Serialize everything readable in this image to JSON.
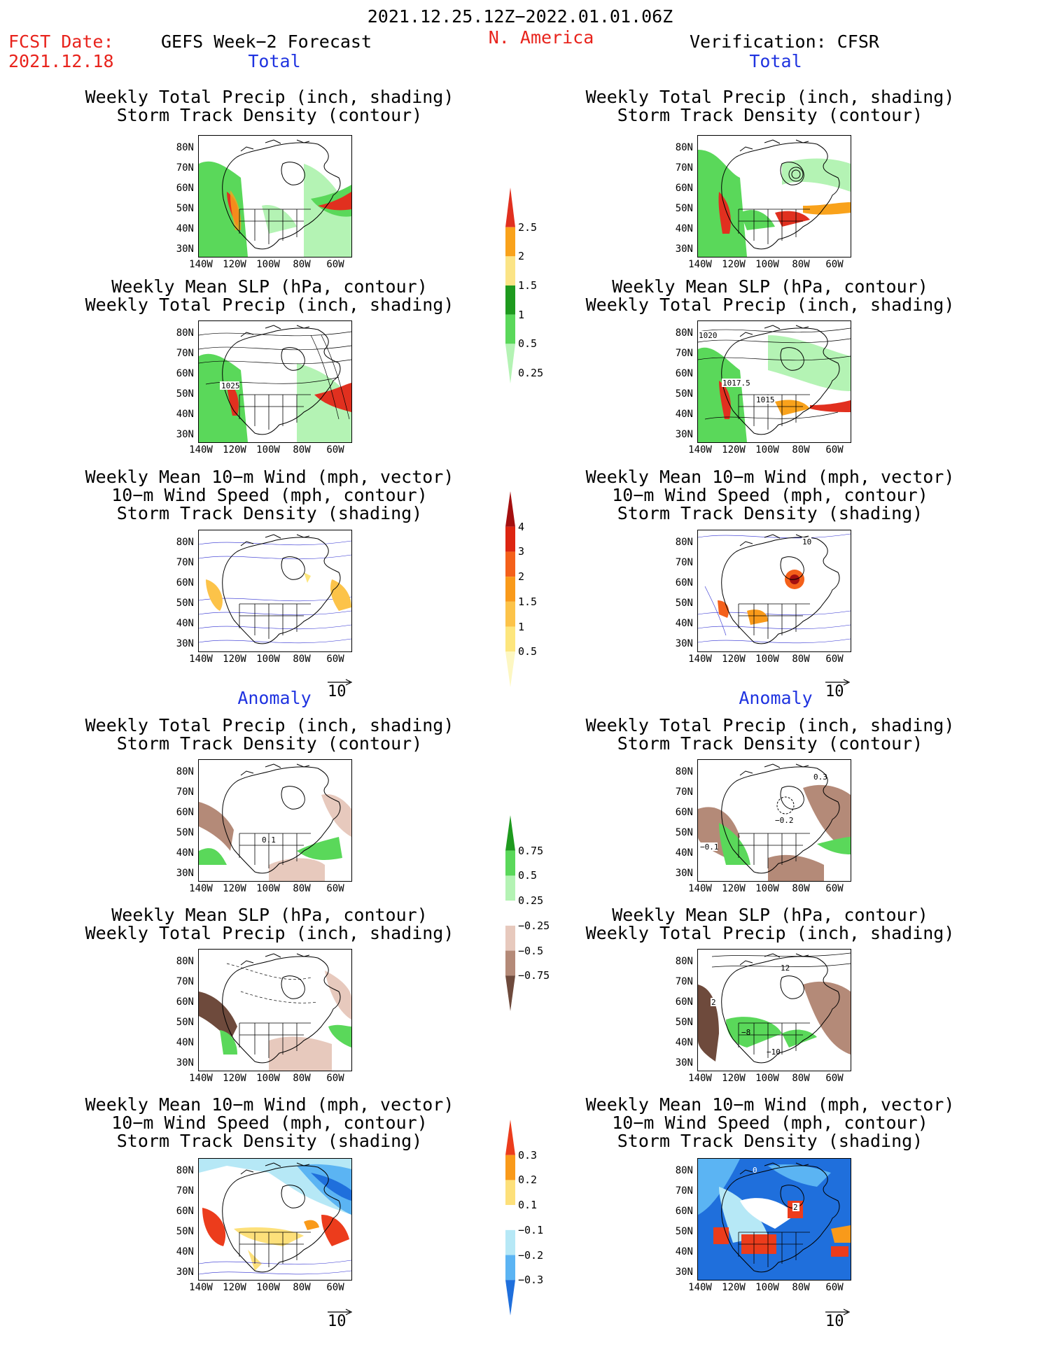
{
  "header": {
    "period": "2021.12.25.12Z−2022.01.01.06Z",
    "fcst_label": "FCST Date:",
    "fcst_date": "2021.12.18",
    "left_title": "GEFS Week−2 Forecast",
    "region": "N. America",
    "right_title": "Verification: CFSR"
  },
  "sections": {
    "total": "Total",
    "anomaly": "Anomaly"
  },
  "titles": {
    "precip_storm": [
      "Weekly Total Precip (inch, shading)",
      "Storm Track Density (contour)"
    ],
    "slp_precip": [
      "Weekly Mean SLP (hPa, contour)",
      "Weekly Total Precip (inch, shading)"
    ],
    "wind_storm": [
      "Weekly Mean 10−m Wind (mph, vector)",
      "10−m Wind Speed (mph, contour)",
      "Storm Track Density (shading)"
    ]
  },
  "axes": {
    "lat": [
      "80N",
      "70N",
      "60N",
      "50N",
      "40N",
      "30N"
    ],
    "lon": [
      "140W",
      "120W",
      "100W",
      "80W",
      "60W"
    ]
  },
  "vector_ref": "10",
  "colorbars": {
    "precip_total": {
      "labels": [
        "2.5",
        "2",
        "1.5",
        "1",
        "0.5",
        "0.25"
      ],
      "colors": [
        "#e1301f",
        "#f9a21b",
        "#fbe486",
        "#1e9a1e",
        "#5ad85a",
        "#b4f3b4"
      ]
    },
    "storm_total": {
      "labels": [
        "4",
        "3",
        "2",
        "1.5",
        "1",
        "0.5"
      ],
      "colors": [
        "#a40f0f",
        "#dd2511",
        "#f4601a",
        "#f99a1a",
        "#fcc349",
        "#fde67d",
        "#fdf7c2"
      ]
    },
    "precip_anom": {
      "labels": [
        "0.75",
        "0.5",
        "0.25",
        "−0.25",
        "−0.5",
        "−0.75"
      ],
      "colors": [
        "#1e9a1e",
        "#5ad85a",
        "#b4f3b4",
        "#ffffff",
        "#e7c9bd",
        "#b48a78",
        "#6e4a3c"
      ]
    },
    "storm_anom": {
      "labels": [
        "0.3",
        "0.2",
        "0.1",
        "−0.1",
        "−0.2",
        "−0.3"
      ],
      "colors": [
        "#ec3c1c",
        "#f99a1a",
        "#fde07a",
        "#ffffff",
        "#b6e8f6",
        "#5bb4f3",
        "#1f6fdc"
      ]
    }
  },
  "map_annotations": {
    "total_slp_fcst": "1025",
    "total_slp_cfsr_a": "1020",
    "total_slp_cfsr_b": "1017.5",
    "total_slp_cfsr_c": "1015",
    "total_wind_cfsr": "10",
    "anom_precip_fcst": "0.1",
    "anom_precip_cfsr_a": "0.3",
    "anom_precip_cfsr_b": "−0.2",
    "anom_precip_cfsr_c": "−0.1",
    "anom_slp_cfsr_a": "12",
    "anom_slp_cfsr_b": "2",
    "anom_slp_cfsr_c": "−8",
    "anom_slp_cfsr_d": "−10",
    "anom_wind_cfsr_a": "0",
    "anom_wind_cfsr_b": "2"
  }
}
